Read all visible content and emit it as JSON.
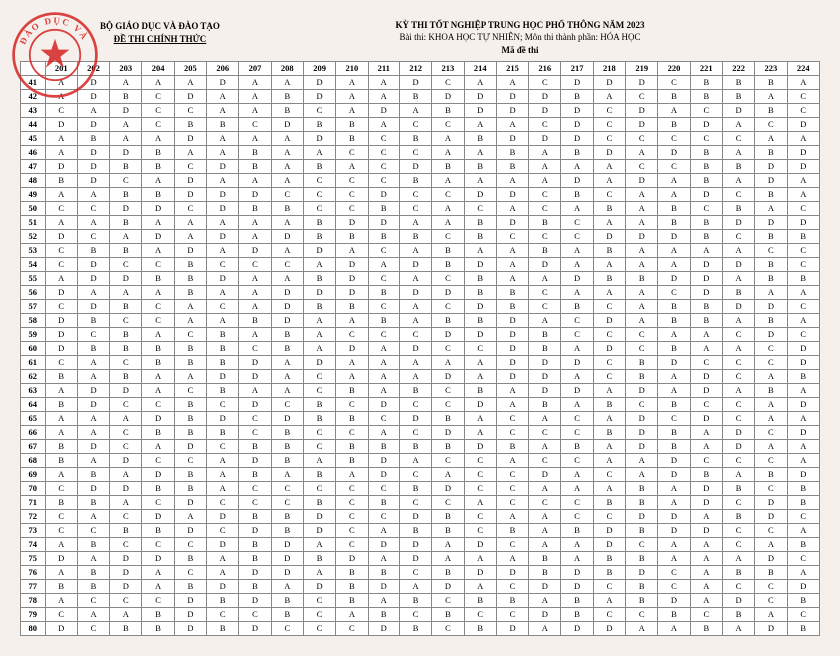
{
  "header": {
    "ministry": "BỘ GIÁO DỤC VÀ ĐÀO TẠO",
    "official": "ĐỀ THI CHÍNH THỨC",
    "exam_title": "KỲ THI TỐT NGHIỆP TRUNG HỌC PHỔ THÔNG NĂM 2023",
    "exam_subject": "Bài thi: KHOA HỌC TỰ NHIÊN; Môn thi thành phần: HÓA HỌC",
    "made": "Mã đề thi"
  },
  "table": {
    "col_headers": [
      "",
      "201",
      "202",
      "203",
      "204",
      "205",
      "206",
      "207",
      "208",
      "209",
      "210",
      "211",
      "212",
      "213",
      "214",
      "215",
      "216",
      "217",
      "218",
      "219",
      "220",
      "221",
      "222",
      "223",
      "224"
    ],
    "rows": [
      [
        "41",
        "A",
        "D",
        "A",
        "A",
        "A",
        "D",
        "A",
        "A",
        "D",
        "A",
        "A",
        "D",
        "C",
        "A",
        "A",
        "C",
        "D",
        "D",
        "D",
        "C",
        "B",
        "B",
        "B",
        "A"
      ],
      [
        "42",
        "A",
        "D",
        "B",
        "C",
        "D",
        "A",
        "A",
        "B",
        "D",
        "A",
        "A",
        "B",
        "D",
        "D",
        "D",
        "D",
        "B",
        "A",
        "C",
        "B",
        "B",
        "B",
        "A",
        "C"
      ],
      [
        "43",
        "C",
        "A",
        "D",
        "C",
        "C",
        "A",
        "A",
        "B",
        "C",
        "A",
        "D",
        "A",
        "B",
        "D",
        "D",
        "D",
        "D",
        "C",
        "D",
        "A",
        "C",
        "D",
        "B",
        "C"
      ],
      [
        "44",
        "D",
        "D",
        "A",
        "C",
        "B",
        "B",
        "C",
        "D",
        "B",
        "B",
        "A",
        "C",
        "C",
        "A",
        "A",
        "C",
        "D",
        "C",
        "D",
        "B",
        "D",
        "A",
        "C",
        "D"
      ],
      [
        "45",
        "A",
        "B",
        "A",
        "A",
        "D",
        "A",
        "A",
        "A",
        "D",
        "B",
        "C",
        "B",
        "A",
        "B",
        "D",
        "D",
        "D",
        "C",
        "C",
        "C",
        "C",
        "C",
        "A",
        "A"
      ],
      [
        "46",
        "A",
        "D",
        "D",
        "B",
        "A",
        "A",
        "B",
        "A",
        "A",
        "C",
        "C",
        "C",
        "A",
        "A",
        "B",
        "A",
        "B",
        "D",
        "A",
        "D",
        "B",
        "A",
        "B",
        "D"
      ],
      [
        "47",
        "D",
        "D",
        "B",
        "B",
        "C",
        "D",
        "B",
        "A",
        "B",
        "A",
        "C",
        "D",
        "B",
        "B",
        "B",
        "A",
        "A",
        "A",
        "C",
        "C",
        "B",
        "B",
        "D",
        "D"
      ],
      [
        "48",
        "B",
        "D",
        "C",
        "A",
        "D",
        "A",
        "A",
        "A",
        "C",
        "C",
        "C",
        "B",
        "A",
        "A",
        "A",
        "A",
        "D",
        "A",
        "D",
        "A",
        "B",
        "A",
        "D",
        "A"
      ],
      [
        "49",
        "A",
        "A",
        "B",
        "B",
        "D",
        "D",
        "D",
        "C",
        "C",
        "C",
        "D",
        "C",
        "C",
        "D",
        "D",
        "C",
        "B",
        "C",
        "A",
        "A",
        "D",
        "C",
        "B",
        "A"
      ],
      [
        "50",
        "C",
        "C",
        "D",
        "D",
        "C",
        "D",
        "B",
        "B",
        "C",
        "C",
        "B",
        "C",
        "A",
        "C",
        "A",
        "C",
        "A",
        "B",
        "A",
        "B",
        "C",
        "B",
        "A",
        "C"
      ],
      [
        "51",
        "A",
        "A",
        "B",
        "A",
        "A",
        "A",
        "A",
        "A",
        "B",
        "D",
        "D",
        "A",
        "A",
        "B",
        "D",
        "B",
        "C",
        "A",
        "A",
        "B",
        "B",
        "D",
        "D",
        "D"
      ],
      [
        "52",
        "D",
        "C",
        "A",
        "D",
        "A",
        "D",
        "A",
        "D",
        "B",
        "B",
        "B",
        "B",
        "C",
        "B",
        "C",
        "C",
        "C",
        "D",
        "D",
        "D",
        "B",
        "C",
        "B",
        "B"
      ],
      [
        "53",
        "C",
        "B",
        "B",
        "A",
        "D",
        "A",
        "D",
        "A",
        "D",
        "A",
        "C",
        "A",
        "B",
        "A",
        "A",
        "B",
        "A",
        "B",
        "A",
        "A",
        "A",
        "A",
        "C",
        "C"
      ],
      [
        "54",
        "C",
        "D",
        "C",
        "C",
        "B",
        "C",
        "C",
        "C",
        "A",
        "D",
        "A",
        "D",
        "B",
        "D",
        "A",
        "D",
        "A",
        "A",
        "A",
        "A",
        "D",
        "D",
        "B",
        "C"
      ],
      [
        "55",
        "A",
        "D",
        "D",
        "B",
        "B",
        "D",
        "A",
        "A",
        "B",
        "D",
        "C",
        "A",
        "C",
        "B",
        "A",
        "A",
        "D",
        "B",
        "B",
        "D",
        "D",
        "A",
        "B",
        "B"
      ],
      [
        "56",
        "D",
        "A",
        "A",
        "A",
        "B",
        "A",
        "A",
        "D",
        "D",
        "D",
        "B",
        "D",
        "D",
        "B",
        "B",
        "C",
        "A",
        "A",
        "A",
        "C",
        "D",
        "B",
        "A",
        "A"
      ],
      [
        "57",
        "C",
        "D",
        "B",
        "C",
        "A",
        "C",
        "A",
        "D",
        "B",
        "B",
        "C",
        "A",
        "C",
        "D",
        "B",
        "C",
        "B",
        "C",
        "A",
        "B",
        "B",
        "D",
        "D",
        "C"
      ],
      [
        "58",
        "D",
        "B",
        "C",
        "C",
        "A",
        "A",
        "B",
        "D",
        "A",
        "A",
        "B",
        "A",
        "B",
        "B",
        "D",
        "A",
        "C",
        "D",
        "A",
        "B",
        "B",
        "A",
        "B",
        "A"
      ],
      [
        "59",
        "D",
        "C",
        "B",
        "A",
        "C",
        "B",
        "A",
        "B",
        "A",
        "C",
        "C",
        "C",
        "D",
        "D",
        "D",
        "B",
        "C",
        "C",
        "C",
        "A",
        "A",
        "C",
        "D",
        "C"
      ],
      [
        "60",
        "D",
        "B",
        "B",
        "B",
        "B",
        "B",
        "C",
        "B",
        "A",
        "D",
        "A",
        "D",
        "C",
        "C",
        "D",
        "B",
        "A",
        "D",
        "C",
        "B",
        "A",
        "A",
        "C",
        "D"
      ],
      [
        "61",
        "C",
        "A",
        "C",
        "B",
        "B",
        "B",
        "D",
        "A",
        "D",
        "A",
        "A",
        "A",
        "A",
        "A",
        "D",
        "D",
        "D",
        "C",
        "B",
        "D",
        "C",
        "C",
        "C",
        "D"
      ],
      [
        "62",
        "B",
        "A",
        "B",
        "A",
        "A",
        "D",
        "D",
        "A",
        "C",
        "A",
        "A",
        "A",
        "D",
        "A",
        "D",
        "D",
        "A",
        "C",
        "B",
        "A",
        "D",
        "C",
        "A",
        "B"
      ],
      [
        "63",
        "A",
        "D",
        "D",
        "A",
        "C",
        "B",
        "A",
        "A",
        "C",
        "B",
        "A",
        "B",
        "C",
        "B",
        "A",
        "D",
        "D",
        "A",
        "D",
        "A",
        "D",
        "A",
        "B",
        "A"
      ],
      [
        "64",
        "B",
        "D",
        "C",
        "C",
        "B",
        "C",
        "D",
        "C",
        "B",
        "C",
        "D",
        "C",
        "C",
        "D",
        "A",
        "B",
        "A",
        "B",
        "C",
        "B",
        "C",
        "C",
        "A",
        "D"
      ],
      [
        "65",
        "A",
        "A",
        "A",
        "D",
        "B",
        "D",
        "C",
        "D",
        "B",
        "B",
        "C",
        "D",
        "B",
        "A",
        "C",
        "A",
        "C",
        "A",
        "D",
        "C",
        "D",
        "C",
        "A",
        "A"
      ],
      [
        "66",
        "A",
        "A",
        "C",
        "B",
        "B",
        "B",
        "C",
        "B",
        "C",
        "C",
        "A",
        "C",
        "D",
        "A",
        "C",
        "C",
        "C",
        "B",
        "D",
        "B",
        "A",
        "D",
        "C",
        "D"
      ],
      [
        "67",
        "B",
        "D",
        "C",
        "A",
        "D",
        "C",
        "B",
        "B",
        "C",
        "B",
        "B",
        "B",
        "B",
        "D",
        "B",
        "A",
        "B",
        "A",
        "D",
        "B",
        "A",
        "D",
        "A",
        "A"
      ],
      [
        "68",
        "B",
        "A",
        "D",
        "C",
        "C",
        "A",
        "D",
        "B",
        "A",
        "B",
        "D",
        "A",
        "C",
        "C",
        "A",
        "C",
        "C",
        "A",
        "A",
        "D",
        "C",
        "C",
        "C",
        "A"
      ],
      [
        "69",
        "A",
        "B",
        "A",
        "D",
        "B",
        "A",
        "B",
        "A",
        "B",
        "A",
        "D",
        "C",
        "A",
        "C",
        "C",
        "D",
        "A",
        "C",
        "A",
        "D",
        "B",
        "A",
        "B",
        "D"
      ],
      [
        "70",
        "C",
        "D",
        "D",
        "B",
        "B",
        "A",
        "C",
        "C",
        "C",
        "C",
        "C",
        "B",
        "D",
        "C",
        "C",
        "A",
        "A",
        "A",
        "B",
        "A",
        "D",
        "B",
        "C",
        "B"
      ],
      [
        "71",
        "B",
        "B",
        "A",
        "C",
        "D",
        "C",
        "C",
        "C",
        "B",
        "C",
        "B",
        "C",
        "C",
        "A",
        "C",
        "C",
        "C",
        "B",
        "B",
        "A",
        "D",
        "C",
        "D",
        "B"
      ],
      [
        "72",
        "C",
        "A",
        "C",
        "D",
        "A",
        "D",
        "B",
        "B",
        "D",
        "C",
        "C",
        "D",
        "B",
        "C",
        "A",
        "A",
        "C",
        "C",
        "D",
        "D",
        "A",
        "B",
        "D",
        "C"
      ],
      [
        "73",
        "C",
        "C",
        "B",
        "B",
        "D",
        "C",
        "D",
        "B",
        "D",
        "C",
        "A",
        "B",
        "B",
        "C",
        "B",
        "A",
        "B",
        "D",
        "B",
        "D",
        "D",
        "C",
        "C",
        "A"
      ],
      [
        "74",
        "A",
        "B",
        "C",
        "C",
        "C",
        "D",
        "B",
        "D",
        "A",
        "C",
        "D",
        "D",
        "A",
        "D",
        "C",
        "A",
        "A",
        "D",
        "C",
        "A",
        "A",
        "C",
        "A",
        "B"
      ],
      [
        "75",
        "D",
        "A",
        "D",
        "D",
        "B",
        "A",
        "B",
        "D",
        "B",
        "D",
        "A",
        "D",
        "A",
        "A",
        "A",
        "B",
        "A",
        "B",
        "B",
        "A",
        "A",
        "A",
        "D",
        "C"
      ],
      [
        "76",
        "A",
        "B",
        "D",
        "A",
        "C",
        "A",
        "D",
        "D",
        "A",
        "B",
        "B",
        "C",
        "B",
        "D",
        "D",
        "B",
        "D",
        "B",
        "D",
        "C",
        "A",
        "B",
        "B",
        "A"
      ],
      [
        "77",
        "B",
        "B",
        "D",
        "A",
        "B",
        "D",
        "B",
        "A",
        "D",
        "B",
        "D",
        "A",
        "D",
        "A",
        "C",
        "D",
        "D",
        "C",
        "B",
        "C",
        "A",
        "C",
        "C",
        "D"
      ],
      [
        "78",
        "A",
        "C",
        "C",
        "C",
        "D",
        "B",
        "D",
        "B",
        "C",
        "B",
        "A",
        "B",
        "C",
        "B",
        "B",
        "A",
        "B",
        "A",
        "B",
        "D",
        "A",
        "D",
        "C",
        "B"
      ],
      [
        "79",
        "C",
        "A",
        "A",
        "B",
        "D",
        "C",
        "C",
        "B",
        "C",
        "A",
        "B",
        "C",
        "B",
        "C",
        "C",
        "D",
        "B",
        "C",
        "C",
        "B",
        "C",
        "B",
        "A",
        "C"
      ],
      [
        "80",
        "D",
        "C",
        "B",
        "B",
        "D",
        "B",
        "D",
        "C",
        "C",
        "C",
        "D",
        "B",
        "C",
        "B",
        "D",
        "A",
        "D",
        "D",
        "A",
        "A",
        "B",
        "A",
        "D",
        "B"
      ]
    ],
    "border_color": "#888888",
    "bg_color": "#ffffff",
    "font_size": 8.5
  },
  "stamp": {
    "outer_color": "#d62424",
    "text": "ĐÀO DỤC VÀ",
    "inner_radius": 26,
    "outer_radius": 44
  }
}
